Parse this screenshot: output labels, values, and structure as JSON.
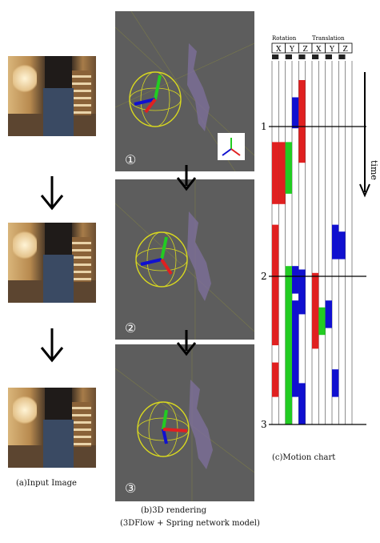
{
  "figure": {
    "caption_a": "(a)Input Image",
    "caption_b_line1": "(b)3D rendering",
    "caption_b_line2": "(3DFlow + Spring network model)",
    "caption_c": "(c)Motion  chart",
    "render_numbers": [
      "①",
      "②",
      "③"
    ],
    "time_label": "time"
  },
  "chart_data": {
    "type": "heatmap",
    "title": "",
    "group_labels": [
      "Rotation",
      "Translation"
    ],
    "columns": [
      "X",
      "Y",
      "Z",
      "X",
      "Y",
      "Z"
    ],
    "frame_markers": [
      {
        "label": "1",
        "row": 0
      },
      {
        "label": "2",
        "row": 1
      },
      {
        "label": "3",
        "row": 2
      }
    ],
    "colors": {
      "red": "#e02020",
      "green": "#22cc22",
      "blue": "#1010d0"
    },
    "segments": [
      {
        "col": 0,
        "start": 0.18,
        "end": 0.36,
        "color": "red"
      },
      {
        "col": 1,
        "start": 0.18,
        "end": 0.36,
        "color": "red"
      },
      {
        "col": 2,
        "start": 0.18,
        "end": 0.33,
        "color": "green"
      },
      {
        "col": 0,
        "start": 0.42,
        "end": 0.77,
        "color": "red"
      },
      {
        "col": 0,
        "start": 0.82,
        "end": 0.92,
        "color": "red"
      },
      {
        "col": 3,
        "start": 0.05,
        "end": 0.14,
        "color": "blue"
      },
      {
        "col": 4,
        "start": 0.0,
        "end": 0.24,
        "color": "red"
      },
      {
        "col": 3,
        "start": 0.54,
        "end": 0.62,
        "color": "blue"
      },
      {
        "col": 4,
        "start": 0.55,
        "end": 0.68,
        "color": "blue"
      },
      {
        "col": 2,
        "start": 0.54,
        "end": 1.0,
        "color": "green"
      },
      {
        "col": 3,
        "start": 0.64,
        "end": 0.92,
        "color": "blue"
      },
      {
        "col": 4,
        "start": 0.88,
        "end": 1.0,
        "color": "blue"
      },
      {
        "col": 6,
        "start": 0.56,
        "end": 0.78,
        "color": "red"
      },
      {
        "col": 7,
        "start": 0.66,
        "end": 0.74,
        "color": "green"
      },
      {
        "col": 8,
        "start": 0.64,
        "end": 0.72,
        "color": "blue"
      },
      {
        "col": 8,
        "start": 0.0,
        "end": 0.0,
        "color": "blue"
      },
      {
        "col": 9,
        "start": 0.42,
        "end": 0.52,
        "color": "blue"
      },
      {
        "col": 10,
        "start": 0.44,
        "end": 0.52,
        "color": "blue"
      },
      {
        "col": 9,
        "start": 0.84,
        "end": 0.92,
        "color": "blue"
      }
    ]
  }
}
